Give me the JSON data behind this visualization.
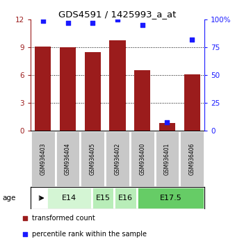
{
  "title": "GDS4591 / 1425993_a_at",
  "samples": [
    "GSM936403",
    "GSM936404",
    "GSM936405",
    "GSM936402",
    "GSM936400",
    "GSM936401",
    "GSM936406"
  ],
  "red_values": [
    9.1,
    9.0,
    8.5,
    9.8,
    6.5,
    0.8,
    6.1
  ],
  "blue_values": [
    99,
    97,
    97,
    100,
    95,
    7,
    82
  ],
  "ylim_left": [
    0,
    12
  ],
  "ylim_right": [
    0,
    100
  ],
  "yticks_left": [
    0,
    3,
    6,
    9,
    12
  ],
  "yticks_right": [
    0,
    25,
    50,
    75,
    100
  ],
  "ytick_labels_right": [
    "0",
    "25",
    "50",
    "75",
    "100%"
  ],
  "bar_color": "#9b1c1c",
  "dot_color": "#1a1aff",
  "age_groups": [
    {
      "label": "E14",
      "start": 0,
      "end": 2,
      "color": "#d4f5d4"
    },
    {
      "label": "E15",
      "start": 2,
      "end": 3,
      "color": "#b8edb8"
    },
    {
      "label": "E16",
      "start": 3,
      "end": 4,
      "color": "#b8edb8"
    },
    {
      "label": "E17.5",
      "start": 4,
      "end": 7,
      "color": "#66cc66"
    }
  ],
  "age_label": "age",
  "legend_red_label": "transformed count",
  "legend_blue_label": "percentile rank within the sample",
  "background_color": "#ffffff",
  "sample_box_color": "#c8c8c8"
}
